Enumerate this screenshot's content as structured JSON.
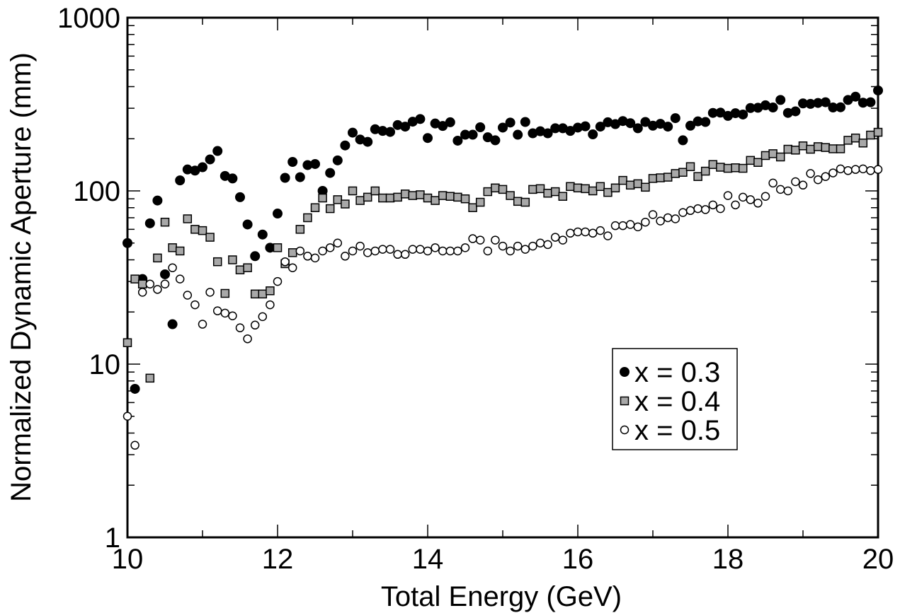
{
  "chart_data": {
    "type": "scatter",
    "title": "",
    "xlabel": "Total Energy (GeV)",
    "ylabel": "Normalized Dynamic Aperture (mm)",
    "xlim": [
      10,
      20
    ],
    "ylim": [
      1,
      1000
    ],
    "yscale": "log",
    "x_ticks": [
      "10",
      "12",
      "14",
      "16",
      "18",
      "20"
    ],
    "y_ticks": [
      "1",
      "10",
      "100",
      "1000"
    ],
    "grid": false,
    "legend_position": "lower-right",
    "series": [
      {
        "name": "x = 0.3",
        "marker": "filled-circle",
        "color": "#000000",
        "points": [
          [
            10.0,
            50
          ],
          [
            10.1,
            7.2
          ],
          [
            10.2,
            31
          ],
          [
            10.3,
            65
          ],
          [
            10.4,
            88
          ],
          [
            10.5,
            33
          ],
          [
            10.6,
            17
          ],
          [
            10.7,
            115
          ],
          [
            10.8,
            133
          ],
          [
            10.9,
            131
          ],
          [
            11.0,
            137
          ],
          [
            11.1,
            152
          ],
          [
            11.2,
            170
          ],
          [
            11.3,
            122
          ],
          [
            11.4,
            118
          ],
          [
            11.5,
            92
          ],
          [
            11.6,
            64
          ],
          [
            11.7,
            42
          ],
          [
            11.8,
            56
          ],
          [
            11.9,
            47
          ],
          [
            12.0,
            74
          ],
          [
            12.1,
            119
          ],
          [
            12.2,
            147
          ],
          [
            12.3,
            120
          ],
          [
            12.4,
            141
          ],
          [
            12.5,
            143
          ],
          [
            12.6,
            100
          ],
          [
            12.7,
            127
          ],
          [
            12.8,
            150
          ],
          [
            12.9,
            183
          ],
          [
            13.0,
            217
          ],
          [
            13.1,
            198
          ],
          [
            13.2,
            192
          ],
          [
            13.3,
            227
          ],
          [
            13.4,
            222
          ],
          [
            13.5,
            219
          ],
          [
            13.6,
            240
          ],
          [
            13.7,
            235
          ],
          [
            13.8,
            251
          ],
          [
            13.9,
            260
          ],
          [
            14.0,
            202
          ],
          [
            14.1,
            245
          ],
          [
            14.2,
            237
          ],
          [
            14.3,
            249
          ],
          [
            14.4,
            195
          ],
          [
            14.5,
            211
          ],
          [
            14.6,
            211
          ],
          [
            14.7,
            233
          ],
          [
            14.8,
            204
          ],
          [
            14.9,
            196
          ],
          [
            15.0,
            232
          ],
          [
            15.1,
            248
          ],
          [
            15.2,
            211
          ],
          [
            15.3,
            250
          ],
          [
            15.4,
            215
          ],
          [
            15.5,
            221
          ],
          [
            15.6,
            215
          ],
          [
            15.7,
            230
          ],
          [
            15.8,
            230
          ],
          [
            15.9,
            222
          ],
          [
            16.0,
            232
          ],
          [
            16.1,
            236
          ],
          [
            16.2,
            212
          ],
          [
            16.3,
            235
          ],
          [
            16.4,
            249
          ],
          [
            16.5,
            243
          ],
          [
            16.6,
            253
          ],
          [
            16.7,
            246
          ],
          [
            16.8,
            230
          ],
          [
            16.9,
            250
          ],
          [
            17.0,
            238
          ],
          [
            17.1,
            244
          ],
          [
            17.2,
            235
          ],
          [
            17.3,
            263
          ],
          [
            17.4,
            196
          ],
          [
            17.5,
            238
          ],
          [
            17.6,
            252
          ],
          [
            17.7,
            250
          ],
          [
            17.8,
            282
          ],
          [
            17.9,
            283
          ],
          [
            18.0,
            271
          ],
          [
            18.1,
            281
          ],
          [
            18.2,
            276
          ],
          [
            18.3,
            301
          ],
          [
            18.4,
            302
          ],
          [
            18.5,
            312
          ],
          [
            18.6,
            303
          ],
          [
            18.7,
            335
          ],
          [
            18.8,
            282
          ],
          [
            18.9,
            288
          ],
          [
            19.0,
            320
          ],
          [
            19.1,
            318
          ],
          [
            19.2,
            322
          ],
          [
            19.3,
            325
          ],
          [
            19.4,
            303
          ],
          [
            19.5,
            304
          ],
          [
            19.6,
            335
          ],
          [
            19.7,
            350
          ],
          [
            19.8,
            323
          ],
          [
            19.9,
            325
          ],
          [
            20.0,
            380
          ]
        ]
      },
      {
        "name": "x = 0.4",
        "marker": "gray-square",
        "color": "#a8a8a8",
        "points": [
          [
            10.0,
            13.3
          ],
          [
            10.1,
            31
          ],
          [
            10.2,
            29
          ],
          [
            10.3,
            8.3
          ],
          [
            10.4,
            41
          ],
          [
            10.5,
            66
          ],
          [
            10.6,
            47
          ],
          [
            10.7,
            45
          ],
          [
            10.8,
            69
          ],
          [
            10.9,
            60
          ],
          [
            11.0,
            59
          ],
          [
            11.1,
            54
          ],
          [
            11.2,
            39
          ],
          [
            11.3,
            25.6
          ],
          [
            11.4,
            40
          ],
          [
            11.5,
            35
          ],
          [
            11.6,
            36
          ],
          [
            11.7,
            25.4
          ],
          [
            11.8,
            25.4
          ],
          [
            11.9,
            26.5
          ],
          [
            12.0,
            47
          ],
          [
            12.1,
            38
          ],
          [
            12.2,
            44
          ],
          [
            12.3,
            60
          ],
          [
            12.4,
            70
          ],
          [
            12.5,
            80
          ],
          [
            12.6,
            91
          ],
          [
            12.7,
            79
          ],
          [
            12.8,
            89
          ],
          [
            12.9,
            84
          ],
          [
            13.0,
            100
          ],
          [
            13.1,
            88
          ],
          [
            13.2,
            92
          ],
          [
            13.3,
            100
          ],
          [
            13.4,
            91
          ],
          [
            13.5,
            91
          ],
          [
            13.6,
            92
          ],
          [
            13.7,
            96
          ],
          [
            13.8,
            94
          ],
          [
            13.9,
            95
          ],
          [
            14.0,
            91
          ],
          [
            14.1,
            88
          ],
          [
            14.2,
            94
          ],
          [
            14.3,
            93
          ],
          [
            14.4,
            92
          ],
          [
            14.5,
            90
          ],
          [
            14.6,
            80
          ],
          [
            14.7,
            86
          ],
          [
            14.8,
            99
          ],
          [
            14.9,
            104
          ],
          [
            15.0,
            102
          ],
          [
            15.1,
            94
          ],
          [
            15.2,
            87
          ],
          [
            15.3,
            86
          ],
          [
            15.4,
            102
          ],
          [
            15.5,
            103
          ],
          [
            15.6,
            97
          ],
          [
            15.7,
            99
          ],
          [
            15.8,
            93
          ],
          [
            15.9,
            106
          ],
          [
            16.0,
            104
          ],
          [
            16.1,
            103
          ],
          [
            16.2,
            100
          ],
          [
            16.3,
            106
          ],
          [
            16.4,
            98
          ],
          [
            16.5,
            104
          ],
          [
            16.6,
            115
          ],
          [
            16.7,
            108
          ],
          [
            16.8,
            110
          ],
          [
            16.9,
            105
          ],
          [
            17.0,
            118
          ],
          [
            17.1,
            119
          ],
          [
            17.2,
            120
          ],
          [
            17.3,
            126
          ],
          [
            17.4,
            128
          ],
          [
            17.5,
            138
          ],
          [
            17.6,
            121
          ],
          [
            17.7,
            130
          ],
          [
            17.8,
            142
          ],
          [
            17.9,
            137
          ],
          [
            18.0,
            135
          ],
          [
            18.1,
            136
          ],
          [
            18.2,
            135
          ],
          [
            18.3,
            150
          ],
          [
            18.4,
            146
          ],
          [
            18.5,
            160
          ],
          [
            18.6,
            164
          ],
          [
            18.7,
            157
          ],
          [
            18.8,
            174
          ],
          [
            18.9,
            172
          ],
          [
            19.0,
            182
          ],
          [
            19.1,
            174
          ],
          [
            19.2,
            180
          ],
          [
            19.3,
            178
          ],
          [
            19.4,
            175
          ],
          [
            19.5,
            175
          ],
          [
            19.6,
            196
          ],
          [
            19.7,
            202
          ],
          [
            19.8,
            189
          ],
          [
            19.9,
            210
          ],
          [
            20.0,
            218
          ]
        ]
      },
      {
        "name": "x = 0.5",
        "marker": "open-circle",
        "color": "#000000",
        "points": [
          [
            10.0,
            5.0
          ],
          [
            10.1,
            3.4
          ],
          [
            10.2,
            26
          ],
          [
            10.3,
            29
          ],
          [
            10.4,
            27
          ],
          [
            10.5,
            29
          ],
          [
            10.6,
            36
          ],
          [
            10.7,
            31
          ],
          [
            10.8,
            25
          ],
          [
            10.9,
            22
          ],
          [
            11.0,
            17
          ],
          [
            11.1,
            26
          ],
          [
            11.2,
            20.3
          ],
          [
            11.3,
            19.7
          ],
          [
            11.4,
            19
          ],
          [
            11.5,
            16.2
          ],
          [
            11.6,
            14
          ],
          [
            11.7,
            16.8
          ],
          [
            11.8,
            18.8
          ],
          [
            11.9,
            22
          ],
          [
            12.0,
            30
          ],
          [
            12.1,
            39
          ],
          [
            12.2,
            36
          ],
          [
            12.3,
            45
          ],
          [
            12.4,
            42
          ],
          [
            12.5,
            41
          ],
          [
            12.6,
            45
          ],
          [
            12.7,
            47
          ],
          [
            12.8,
            50
          ],
          [
            12.9,
            42
          ],
          [
            13.0,
            45
          ],
          [
            13.1,
            48
          ],
          [
            13.2,
            44
          ],
          [
            13.3,
            45
          ],
          [
            13.4,
            46
          ],
          [
            13.5,
            46
          ],
          [
            13.6,
            43
          ],
          [
            13.7,
            43
          ],
          [
            13.8,
            46
          ],
          [
            13.9,
            46
          ],
          [
            14.0,
            45
          ],
          [
            14.1,
            47
          ],
          [
            14.2,
            45
          ],
          [
            14.3,
            45
          ],
          [
            14.4,
            45
          ],
          [
            14.5,
            47
          ],
          [
            14.6,
            53
          ],
          [
            14.7,
            52
          ],
          [
            14.8,
            45
          ],
          [
            14.9,
            52
          ],
          [
            15.0,
            48
          ],
          [
            15.1,
            45
          ],
          [
            15.2,
            48
          ],
          [
            15.3,
            46
          ],
          [
            15.4,
            48
          ],
          [
            15.5,
            50
          ],
          [
            15.6,
            49
          ],
          [
            15.7,
            54
          ],
          [
            15.8,
            52
          ],
          [
            15.9,
            57
          ],
          [
            16.0,
            58
          ],
          [
            16.1,
            58
          ],
          [
            16.2,
            57
          ],
          [
            16.3,
            59
          ],
          [
            16.4,
            55
          ],
          [
            16.5,
            63
          ],
          [
            16.6,
            63
          ],
          [
            16.7,
            64
          ],
          [
            16.8,
            62
          ],
          [
            16.9,
            66
          ],
          [
            17.0,
            73
          ],
          [
            17.1,
            67
          ],
          [
            17.2,
            70
          ],
          [
            17.3,
            69
          ],
          [
            17.4,
            75
          ],
          [
            17.5,
            77
          ],
          [
            17.6,
            79
          ],
          [
            17.7,
            78
          ],
          [
            17.8,
            83
          ],
          [
            17.9,
            79
          ],
          [
            18.0,
            94
          ],
          [
            18.1,
            83
          ],
          [
            18.2,
            92
          ],
          [
            18.3,
            89
          ],
          [
            18.4,
            85
          ],
          [
            18.5,
            93
          ],
          [
            18.6,
            111
          ],
          [
            18.7,
            102
          ],
          [
            18.8,
            100
          ],
          [
            18.9,
            113
          ],
          [
            19.0,
            108
          ],
          [
            19.1,
            126
          ],
          [
            19.2,
            116
          ],
          [
            19.3,
            121
          ],
          [
            19.4,
            127
          ],
          [
            19.5,
            134
          ],
          [
            19.6,
            131
          ],
          [
            19.7,
            133
          ],
          [
            19.8,
            134
          ],
          [
            19.9,
            131
          ],
          [
            20.0,
            133
          ]
        ]
      }
    ]
  }
}
